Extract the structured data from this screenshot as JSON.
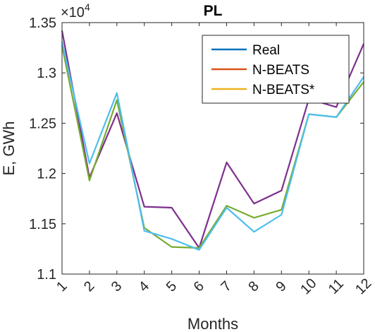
{
  "chart_data": {
    "type": "line",
    "title": "PL",
    "xlabel": "Months",
    "ylabel": "E, GWh",
    "y_multiplier": {
      "base": "×10",
      "exponent": "4"
    },
    "x": [
      1,
      2,
      3,
      4,
      5,
      6,
      7,
      8,
      9,
      10,
      11,
      12
    ],
    "x_tick_labels": [
      "1",
      "2",
      "3",
      "4",
      "5",
      "6",
      "7",
      "8",
      "9",
      "10",
      "11",
      "12"
    ],
    "xlim": [
      1,
      12
    ],
    "ylim": [
      1.1,
      1.35
    ],
    "y_ticks": [
      1.1,
      1.15,
      1.2,
      1.25,
      1.3,
      1.35
    ],
    "y_tick_labels": [
      "1.1",
      "1.15",
      "1.2",
      "1.25",
      "1.3",
      "1.35"
    ],
    "grid": false,
    "legend_position": "top-right",
    "legend": [
      {
        "name": "Real",
        "color": "#0072BD"
      },
      {
        "name": "N-BEATS",
        "color": "#D95319"
      },
      {
        "name": "N-BEATS*",
        "color": "#EDB120"
      }
    ],
    "series": [
      {
        "color": "#7E2F8E",
        "values": [
          1.342,
          1.196,
          1.26,
          1.167,
          1.166,
          1.126,
          1.211,
          1.17,
          1.183,
          1.274,
          1.266,
          1.329
        ]
      },
      {
        "color": "#77AC30",
        "values": [
          1.327,
          1.193,
          1.273,
          1.146,
          1.127,
          1.126,
          1.168,
          1.156,
          1.164,
          1.259,
          1.256,
          1.291
        ]
      },
      {
        "color": "#4DBEEE",
        "values": [
          1.331,
          1.21,
          1.28,
          1.143,
          1.135,
          1.124,
          1.166,
          1.142,
          1.159,
          1.259,
          1.256,
          1.296
        ]
      }
    ]
  }
}
